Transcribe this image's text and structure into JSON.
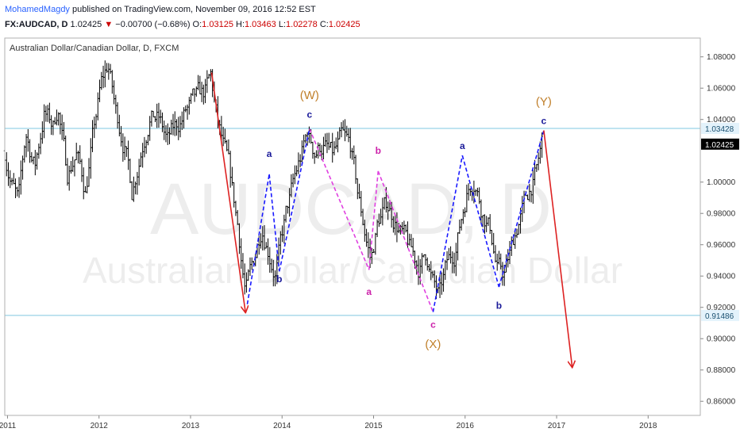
{
  "header": {
    "author": "MohamedMagdy",
    "published": "published on TradingView.com, November 09, 2016 12:52 EST",
    "symbol": "FX:AUDCAD, D",
    "last": "1.02425",
    "arrow": "▼",
    "change": "−0.00700 (−0.68%)",
    "o_label": "O:",
    "o_val": "1.03125",
    "h_label": "H:",
    "h_val": "1.03463",
    "l_label": "L:",
    "l_val": "1.02278",
    "c_label": "C:",
    "c_val": "1.02425"
  },
  "colors": {
    "bars": "#000000",
    "hline": "#7fc8e0",
    "blue_wave": "#1a1aff",
    "magenta_wave": "#e040e0",
    "red_arrow": "#dd2222",
    "wave_label_orange": "#c07f2a",
    "label_blue": "#1a1a99",
    "label_magenta": "#cc22aa",
    "price_tag_blue": "#e3f2fb",
    "price_tag_dark": "#000000"
  },
  "chart_data": {
    "type": "candlestick",
    "title": "Australian Dollar/Canadian Dollar, D, FXCM",
    "watermark_symbol": "AUDCAD, D",
    "watermark_name": "Australian Dollar/Canadian Dollar",
    "x_ticks": [
      "2011",
      "2012",
      "2013",
      "2014",
      "2015",
      "2016",
      "2017",
      "2018"
    ],
    "y_ticks": [
      "1.08000",
      "1.06000",
      "1.04000",
      "1.00000",
      "0.98000",
      "0.96000",
      "0.94000",
      "0.92000",
      "0.90000",
      "0.88000",
      "0.86000"
    ],
    "xlim": [
      2010.97,
      2018.57
    ],
    "ylim": [
      0.851,
      1.092
    ],
    "last_price": 1.02425,
    "horizontal_lines": [
      {
        "label": "1.03428",
        "value": 1.03428
      },
      {
        "label": "0.91486",
        "value": 0.91486
      }
    ],
    "price_path": [
      [
        2010.97,
        1.02
      ],
      [
        2011.05,
        1.0
      ],
      [
        2011.12,
        0.985
      ],
      [
        2011.2,
        1.03
      ],
      [
        2011.3,
        1.01
      ],
      [
        2011.4,
        1.045
      ],
      [
        2011.5,
        1.035
      ],
      [
        2011.55,
        1.05
      ],
      [
        2011.65,
        1.005
      ],
      [
        2011.75,
        1.02
      ],
      [
        2011.85,
        0.995
      ],
      [
        2011.95,
        1.035
      ],
      [
        2012.02,
        1.06
      ],
      [
        2012.1,
        1.075
      ],
      [
        2012.18,
        1.045
      ],
      [
        2012.28,
        1.025
      ],
      [
        2012.36,
        0.995
      ],
      [
        2012.45,
        1.02
      ],
      [
        2012.55,
        1.045
      ],
      [
        2012.65,
        1.04
      ],
      [
        2012.75,
        1.025
      ],
      [
        2012.85,
        1.035
      ],
      [
        2012.95,
        1.045
      ],
      [
        2013.05,
        1.05
      ],
      [
        2013.15,
        1.055
      ],
      [
        2013.22,
        1.065
      ],
      [
        2013.3,
        1.035
      ],
      [
        2013.42,
        1.005
      ],
      [
        2013.52,
        0.97
      ],
      [
        2013.6,
        0.93
      ],
      [
        2013.68,
        0.945
      ],
      [
        2013.78,
        0.975
      ],
      [
        2013.85,
        0.96
      ],
      [
        2013.93,
        0.943
      ],
      [
        2014.05,
        0.98
      ],
      [
        2014.18,
        1.01
      ],
      [
        2014.28,
        1.03
      ],
      [
        2014.35,
        1.02
      ],
      [
        2014.45,
        1.025
      ],
      [
        2014.55,
        1.015
      ],
      [
        2014.65,
        1.025
      ],
      [
        2014.75,
        1.02
      ],
      [
        2014.83,
        0.99
      ],
      [
        2014.9,
        0.97
      ],
      [
        2014.97,
        0.95
      ],
      [
        2015.05,
        0.975
      ],
      [
        2015.15,
        0.985
      ],
      [
        2015.25,
        0.975
      ],
      [
        2015.32,
        0.965
      ],
      [
        2015.4,
        0.955
      ],
      [
        2015.5,
        0.945
      ],
      [
        2015.58,
        0.955
      ],
      [
        2015.65,
        0.935
      ],
      [
        2015.72,
        0.925
      ],
      [
        2015.8,
        0.945
      ],
      [
        2015.88,
        0.955
      ],
      [
        2015.95,
        0.975
      ],
      [
        2016.02,
        0.995
      ],
      [
        2016.1,
        1.005
      ],
      [
        2016.18,
        0.985
      ],
      [
        2016.28,
        0.97
      ],
      [
        2016.35,
        0.945
      ],
      [
        2016.42,
        0.94
      ],
      [
        2016.5,
        0.955
      ],
      [
        2016.58,
        0.975
      ],
      [
        2016.65,
        0.985
      ],
      [
        2016.72,
        0.998
      ],
      [
        2016.78,
        1.005
      ],
      [
        2016.84,
        1.024
      ]
    ],
    "waves": [
      {
        "name": "blue-a-up",
        "color": "blue_wave",
        "dash": true,
        "points": [
          [
            2013.62,
            0.922
          ],
          [
            2013.86,
            1.005
          ]
        ]
      },
      {
        "name": "blue-b-down",
        "color": "blue_wave",
        "dash": true,
        "points": [
          [
            2013.86,
            1.005
          ],
          [
            2013.97,
            0.943
          ]
        ]
      },
      {
        "name": "blue-c-up",
        "color": "blue_wave",
        "dash": true,
        "points": [
          [
            2013.97,
            0.943
          ],
          [
            2014.3,
            1.034
          ]
        ]
      },
      {
        "name": "magenta-a-down",
        "color": "magenta_wave",
        "dash": true,
        "points": [
          [
            2014.3,
            1.034
          ],
          [
            2014.95,
            0.944
          ]
        ]
      },
      {
        "name": "magenta-b-up",
        "color": "magenta_wave",
        "dash": true,
        "points": [
          [
            2014.95,
            0.944
          ],
          [
            2015.05,
            1.007
          ]
        ]
      },
      {
        "name": "magenta-c-down",
        "color": "magenta_wave",
        "dash": true,
        "points": [
          [
            2015.05,
            1.007
          ],
          [
            2015.65,
            0.917
          ]
        ]
      },
      {
        "name": "blue-a2-up",
        "color": "blue_wave",
        "dash": true,
        "points": [
          [
            2015.65,
            0.917
          ],
          [
            2015.97,
            1.017
          ]
        ]
      },
      {
        "name": "blue-b2-down",
        "color": "blue_wave",
        "dash": true,
        "points": [
          [
            2015.97,
            1.017
          ],
          [
            2016.37,
            0.933
          ]
        ]
      },
      {
        "name": "blue-c2-up",
        "color": "blue_wave",
        "dash": true,
        "points": [
          [
            2016.37,
            0.933
          ],
          [
            2016.86,
            1.033
          ]
        ]
      },
      {
        "name": "red-arrow-1",
        "color": "red_arrow",
        "dash": false,
        "arrow": true,
        "points": [
          [
            2013.23,
            1.07
          ],
          [
            2013.6,
            0.917
          ]
        ]
      },
      {
        "name": "red-arrow-2",
        "color": "red_arrow",
        "dash": false,
        "arrow": true,
        "points": [
          [
            2016.86,
            1.033
          ],
          [
            2017.17,
            0.882
          ]
        ]
      }
    ],
    "wave_labels": [
      {
        "text": "a",
        "x": 2013.86,
        "y": 1.016,
        "color": "label_blue",
        "size": 12
      },
      {
        "text": "b",
        "x": 2013.97,
        "y": 0.936,
        "color": "label_blue",
        "size": 12
      },
      {
        "text": "c",
        "x": 2014.3,
        "y": 1.041,
        "color": "label_blue",
        "size": 12
      },
      {
        "text": "(W)",
        "x": 2014.3,
        "y": 1.053,
        "color": "wave_label_orange",
        "size": 15
      },
      {
        "text": "a",
        "x": 2014.95,
        "y": 0.928,
        "color": "label_magenta",
        "size": 12
      },
      {
        "text": "b",
        "x": 2015.05,
        "y": 1.018,
        "color": "label_magenta",
        "size": 12
      },
      {
        "text": "c",
        "x": 2015.65,
        "y": 0.907,
        "color": "label_magenta",
        "size": 12
      },
      {
        "text": "(X)",
        "x": 2015.65,
        "y": 0.894,
        "color": "wave_label_orange",
        "size": 15
      },
      {
        "text": "a",
        "x": 2015.97,
        "y": 1.021,
        "color": "label_blue",
        "size": 12
      },
      {
        "text": "b",
        "x": 2016.37,
        "y": 0.919,
        "color": "label_blue",
        "size": 12
      },
      {
        "text": "c",
        "x": 2016.86,
        "y": 1.037,
        "color": "label_blue",
        "size": 12
      },
      {
        "text": "(Y)",
        "x": 2016.86,
        "y": 1.049,
        "color": "wave_label_orange",
        "size": 15
      }
    ]
  }
}
